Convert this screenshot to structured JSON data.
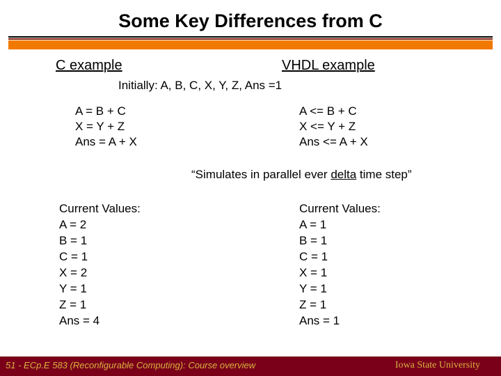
{
  "title": "Some Key Differences from C",
  "left_header": "C example",
  "right_header": "VHDL example",
  "initial_condition": "Initially: A, B, C, X, Y, Z, Ans =1",
  "c_code": "A = B + C\nX = Y + Z\nAns = A + X",
  "vhdl_code": "A <= B + C\nX <= Y + Z\nAns <= A + X",
  "sim_note_prefix": "“Simulates in parallel ever ",
  "sim_note_delta": "delta",
  "sim_note_suffix": " time step”",
  "left_values": "Current Values:\nA = 2\nB = 1\nC = 1\nX = 2\nY = 1\nZ = 1\nAns = 4",
  "right_values": "Current Values:\nA = 1\nB = 1\nC = 1\nX = 1\nY = 1\nZ = 1\nAns = 1",
  "footer_page": "51",
  "footer_course": "ECp.E 583 (Reconfigurable Computing): Course overview",
  "footer_university": "Iowa State University",
  "colors": {
    "title_color": "#000000",
    "divider_top": "#000000",
    "divider_mid": "#7f1a00",
    "divider_bottom": "#f27900",
    "footer_bg": "#7a0019",
    "footer_text": "#d9b340",
    "body_text": "#000000",
    "background": "#ffffff"
  },
  "typography": {
    "title_fontsize": 27,
    "header_fontsize": 20,
    "body_fontsize": 17,
    "footer_fontsize": 13
  }
}
